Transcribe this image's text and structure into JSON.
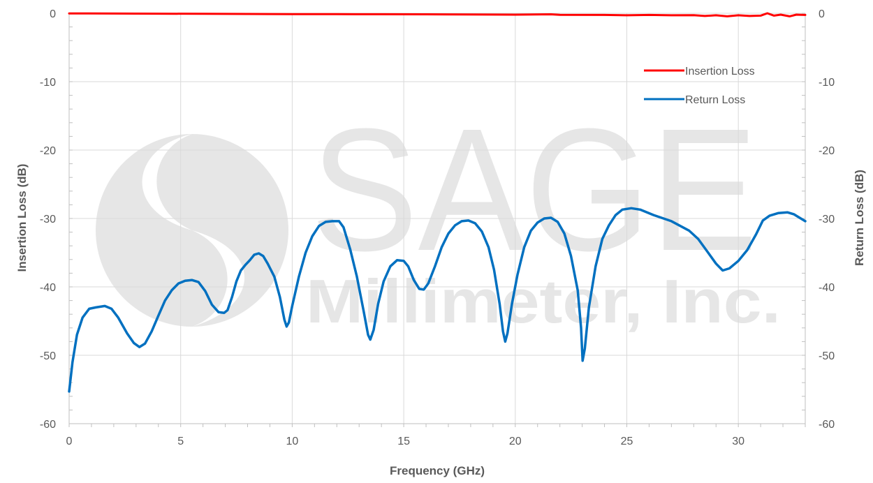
{
  "chart_data": {
    "type": "line",
    "watermark": {
      "line1": "SAGE",
      "line2": "Millimeter, Inc."
    },
    "xlabel": "Frequency (GHz)",
    "ylabel_left": "Insertion Loss (dB)",
    "ylabel_right": "Return Loss (dB)",
    "xlim": [
      0,
      33
    ],
    "ylim": [
      -60,
      0
    ],
    "x_ticks": [
      0,
      5,
      10,
      15,
      20,
      25,
      30
    ],
    "y_ticks": [
      0,
      -10,
      -20,
      -30,
      -40,
      -50,
      -60
    ],
    "grid": true,
    "legend_position": "top-right",
    "series": [
      {
        "name": "Insertion Loss",
        "color": "#ff0000",
        "axis": "left",
        "points": [
          [
            0,
            -0.02
          ],
          [
            2,
            -0.04
          ],
          [
            4,
            -0.06
          ],
          [
            6,
            -0.08
          ],
          [
            8,
            -0.1
          ],
          [
            10,
            -0.12
          ],
          [
            12,
            -0.13
          ],
          [
            14,
            -0.14
          ],
          [
            16,
            -0.15
          ],
          [
            18,
            -0.17
          ],
          [
            20,
            -0.2
          ],
          [
            21.6,
            -0.15
          ],
          [
            22,
            -0.22
          ],
          [
            24,
            -0.25
          ],
          [
            25,
            -0.3
          ],
          [
            26,
            -0.25
          ],
          [
            27,
            -0.3
          ],
          [
            28,
            -0.28
          ],
          [
            28.5,
            -0.4
          ],
          [
            29,
            -0.3
          ],
          [
            29.5,
            -0.45
          ],
          [
            30,
            -0.3
          ],
          [
            30.5,
            -0.4
          ],
          [
            31,
            -0.35
          ],
          [
            31.3,
            0.0
          ],
          [
            31.6,
            -0.35
          ],
          [
            31.9,
            -0.2
          ],
          [
            32.3,
            -0.45
          ],
          [
            32.6,
            -0.2
          ],
          [
            33,
            -0.25
          ]
        ]
      },
      {
        "name": "Return Loss",
        "color": "#0070c0",
        "axis": "right",
        "points": [
          [
            0,
            -55.3
          ],
          [
            0.15,
            -51
          ],
          [
            0.35,
            -47
          ],
          [
            0.6,
            -44.5
          ],
          [
            0.9,
            -43.2
          ],
          [
            1.2,
            -43
          ],
          [
            1.6,
            -42.8
          ],
          [
            1.9,
            -43.2
          ],
          [
            2.2,
            -44.5
          ],
          [
            2.6,
            -46.8
          ],
          [
            2.9,
            -48.2
          ],
          [
            3.15,
            -48.8
          ],
          [
            3.4,
            -48.3
          ],
          [
            3.7,
            -46.5
          ],
          [
            4.0,
            -44.2
          ],
          [
            4.3,
            -42
          ],
          [
            4.6,
            -40.5
          ],
          [
            4.9,
            -39.5
          ],
          [
            5.2,
            -39.1
          ],
          [
            5.5,
            -39
          ],
          [
            5.8,
            -39.3
          ],
          [
            6.1,
            -40.6
          ],
          [
            6.4,
            -42.6
          ],
          [
            6.7,
            -43.7
          ],
          [
            6.95,
            -43.8
          ],
          [
            7.1,
            -43.4
          ],
          [
            7.3,
            -41.5
          ],
          [
            7.5,
            -39.2
          ],
          [
            7.7,
            -37.6
          ],
          [
            7.9,
            -36.8
          ],
          [
            8.1,
            -36.1
          ],
          [
            8.3,
            -35.3
          ],
          [
            8.5,
            -35.1
          ],
          [
            8.7,
            -35.5
          ],
          [
            8.9,
            -36.6
          ],
          [
            9.2,
            -38.5
          ],
          [
            9.45,
            -41.5
          ],
          [
            9.65,
            -44.8
          ],
          [
            9.75,
            -45.8
          ],
          [
            9.85,
            -45.2
          ],
          [
            10.0,
            -42.8
          ],
          [
            10.3,
            -38.5
          ],
          [
            10.6,
            -35
          ],
          [
            10.9,
            -32.6
          ],
          [
            11.2,
            -31.1
          ],
          [
            11.5,
            -30.5
          ],
          [
            11.8,
            -30.4
          ],
          [
            12.1,
            -30.4
          ],
          [
            12.3,
            -31.3
          ],
          [
            12.6,
            -34.5
          ],
          [
            12.9,
            -38.5
          ],
          [
            13.2,
            -43.5
          ],
          [
            13.4,
            -47
          ],
          [
            13.5,
            -47.7
          ],
          [
            13.65,
            -46.3
          ],
          [
            13.85,
            -42.5
          ],
          [
            14.1,
            -39.2
          ],
          [
            14.4,
            -37
          ],
          [
            14.7,
            -36.1
          ],
          [
            15.0,
            -36.2
          ],
          [
            15.2,
            -37
          ],
          [
            15.45,
            -39
          ],
          [
            15.7,
            -40.3
          ],
          [
            15.9,
            -40.4
          ],
          [
            16.1,
            -39.5
          ],
          [
            16.4,
            -37
          ],
          [
            16.7,
            -34.2
          ],
          [
            17.0,
            -32.2
          ],
          [
            17.3,
            -31
          ],
          [
            17.6,
            -30.4
          ],
          [
            17.9,
            -30.3
          ],
          [
            18.2,
            -30.7
          ],
          [
            18.5,
            -31.9
          ],
          [
            18.8,
            -34.2
          ],
          [
            19.05,
            -37.5
          ],
          [
            19.3,
            -42.5
          ],
          [
            19.45,
            -46.5
          ],
          [
            19.55,
            -48
          ],
          [
            19.65,
            -46.8
          ],
          [
            19.85,
            -42.5
          ],
          [
            20.1,
            -38.2
          ],
          [
            20.4,
            -34.2
          ],
          [
            20.7,
            -31.8
          ],
          [
            21.0,
            -30.6
          ],
          [
            21.3,
            -30
          ],
          [
            21.6,
            -29.9
          ],
          [
            21.9,
            -30.5
          ],
          [
            22.2,
            -32.2
          ],
          [
            22.5,
            -35.5
          ],
          [
            22.8,
            -40.5
          ],
          [
            22.95,
            -46
          ],
          [
            23.02,
            -50.8
          ],
          [
            23.12,
            -49
          ],
          [
            23.3,
            -43
          ],
          [
            23.6,
            -37
          ],
          [
            23.9,
            -33
          ],
          [
            24.2,
            -31
          ],
          [
            24.5,
            -29.5
          ],
          [
            24.8,
            -28.7
          ],
          [
            25.2,
            -28.5
          ],
          [
            25.6,
            -28.7
          ],
          [
            26.2,
            -29.5
          ],
          [
            27.0,
            -30.4
          ],
          [
            27.8,
            -31.8
          ],
          [
            28.2,
            -33
          ],
          [
            28.6,
            -34.8
          ],
          [
            29.0,
            -36.6
          ],
          [
            29.3,
            -37.6
          ],
          [
            29.6,
            -37.3
          ],
          [
            30.0,
            -36.2
          ],
          [
            30.4,
            -34.6
          ],
          [
            30.8,
            -32.3
          ],
          [
            31.1,
            -30.3
          ],
          [
            31.4,
            -29.6
          ],
          [
            31.8,
            -29.2
          ],
          [
            32.2,
            -29.1
          ],
          [
            32.5,
            -29.4
          ],
          [
            32.8,
            -30
          ],
          [
            33.0,
            -30.4
          ]
        ]
      }
    ]
  }
}
